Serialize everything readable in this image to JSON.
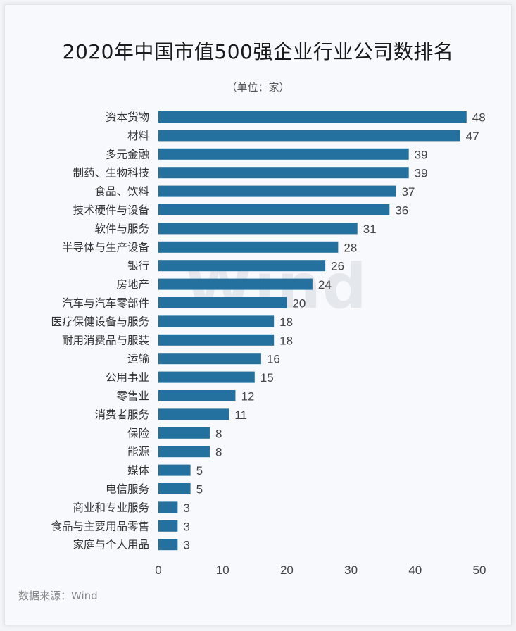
{
  "title": "2020年中国市值500强企业行业公司数排名",
  "unit_label": "（单位：家）",
  "source": "数据来源：Wind",
  "watermark": "Wind",
  "colors": {
    "bar": "#2471a0",
    "text": "#333333",
    "value_text": "#444444"
  },
  "chart_data": {
    "type": "bar",
    "orientation": "horizontal",
    "title": "2020年中国市值500强企业行业公司数排名",
    "unit": "（单位：家）",
    "categories": [
      "资本货物",
      "材料",
      "多元金融",
      "制药、生物科技",
      "食品、饮料",
      "技术硬件与设备",
      "软件与服务",
      "半导体与生产设备",
      "银行",
      "房地产",
      "汽车与汽车零部件",
      "医疗保健设备与服务",
      "耐用消费品与服装",
      "运输",
      "公用事业",
      "零售业",
      "消费者服务",
      "保险",
      "能源",
      "媒体",
      "电信服务",
      "商业和专业服务",
      "食品与主要用品零售",
      "家庭与个人用品"
    ],
    "values": [
      48,
      47,
      39,
      39,
      37,
      36,
      31,
      28,
      26,
      24,
      20,
      18,
      18,
      16,
      15,
      12,
      11,
      8,
      8,
      5,
      5,
      3,
      3,
      3
    ],
    "xlim": [
      0,
      50
    ],
    "xticks": [
      0,
      10,
      20,
      30,
      40,
      50
    ],
    "grid": false,
    "data_labels": true
  }
}
